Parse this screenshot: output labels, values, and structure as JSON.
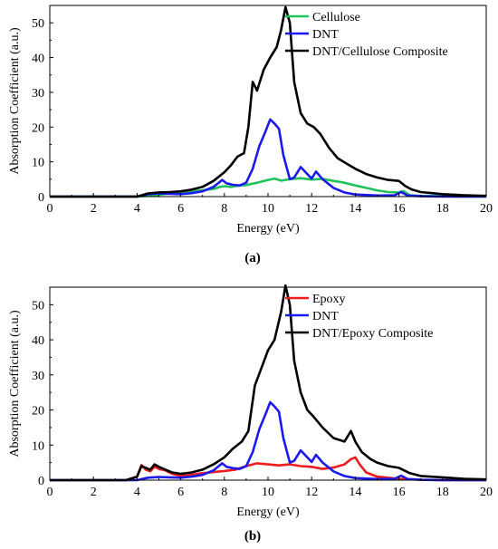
{
  "chart_data": [
    {
      "type": "line",
      "panel_label": "(a)",
      "xlabel": "Energy (eV)",
      "ylabel": "Absorption Coefficient (a.u.)",
      "xlim": [
        0,
        20
      ],
      "ylim": [
        0,
        55
      ],
      "xticks": [
        0,
        2,
        4,
        6,
        8,
        10,
        12,
        14,
        16,
        18,
        20
      ],
      "yticks": [
        0,
        10,
        20,
        30,
        40,
        50
      ],
      "legend_position": "top-right",
      "series": [
        {
          "name": "Cellulose",
          "color": "#1fc35a",
          "x": [
            0,
            4.0,
            4.5,
            5.0,
            5.5,
            6.0,
            6.5,
            7.0,
            7.5,
            7.8,
            8.0,
            8.3,
            8.6,
            9.0,
            9.5,
            10.0,
            10.3,
            10.6,
            11.0,
            11.5,
            12.0,
            12.5,
            13.0,
            13.5,
            14.0,
            14.5,
            15.0,
            15.5,
            16.0,
            16.2,
            16.5,
            17.0,
            18.0,
            19.0,
            20.0
          ],
          "y": [
            0,
            0,
            0.2,
            0.5,
            0.9,
            1.2,
            1.5,
            1.8,
            2.2,
            2.8,
            3.0,
            2.8,
            3.1,
            3.3,
            4.0,
            4.8,
            5.2,
            4.6,
            5.0,
            5.3,
            4.9,
            5.1,
            4.5,
            4.0,
            3.2,
            2.5,
            1.8,
            1.3,
            1.2,
            1.6,
            0.4,
            0.2,
            0.1,
            0,
            0
          ]
        },
        {
          "name": "DNT",
          "color": "#1a1aee",
          "x": [
            0,
            4.0,
            4.5,
            5.0,
            5.5,
            6.0,
            6.5,
            7.0,
            7.5,
            7.9,
            8.1,
            8.4,
            8.7,
            9.0,
            9.3,
            9.6,
            9.9,
            10.1,
            10.3,
            10.5,
            10.7,
            11.0,
            11.2,
            11.5,
            11.8,
            12.0,
            12.2,
            12.5,
            13.0,
            13.5,
            14.0,
            15.0,
            15.8,
            16.1,
            16.4,
            17.0,
            18.0,
            20.0
          ],
          "y": [
            0,
            0,
            0.7,
            0.9,
            0.8,
            0.7,
            1.0,
            1.5,
            2.8,
            4.8,
            3.8,
            3.4,
            3.2,
            4.0,
            8.0,
            14.5,
            19.0,
            22.2,
            21.0,
            19.5,
            12.0,
            5.0,
            5.5,
            8.5,
            6.5,
            5.2,
            7.2,
            5.0,
            2.5,
            1.2,
            0.6,
            0.3,
            0.4,
            1.3,
            0.3,
            0.1,
            0,
            0
          ]
        },
        {
          "name": "DNT/Cellulose Composite",
          "color": "#000000",
          "x": [
            0,
            4.0,
            4.5,
            5.0,
            5.5,
            6.0,
            6.5,
            7.0,
            7.5,
            8.0,
            8.3,
            8.6,
            8.9,
            9.1,
            9.3,
            9.5,
            9.8,
            10.1,
            10.4,
            10.6,
            10.8,
            11.0,
            11.2,
            11.5,
            11.8,
            12.1,
            12.4,
            12.8,
            13.2,
            13.6,
            14.0,
            14.5,
            15.0,
            15.5,
            16.0,
            16.3,
            16.6,
            17.0,
            17.5,
            18.0,
            19.0,
            20.0
          ],
          "y": [
            0,
            0,
            0.9,
            1.2,
            1.3,
            1.5,
            2.0,
            2.8,
            4.5,
            7.0,
            9.0,
            11.5,
            12.5,
            20.0,
            33.0,
            30.5,
            36.5,
            40.0,
            43.0,
            48.0,
            54.5,
            50.0,
            33.0,
            24.0,
            21.0,
            20.0,
            18.0,
            14.0,
            11.0,
            9.5,
            8.0,
            6.5,
            5.5,
            4.8,
            4.5,
            3.0,
            2.0,
            1.3,
            1.0,
            0.7,
            0.4,
            0.2
          ]
        }
      ]
    },
    {
      "type": "line",
      "panel_label": "(b)",
      "xlabel": "Energy (eV)",
      "ylabel": "Absorption Coefficient (a.u.)",
      "xlim": [
        0,
        20
      ],
      "ylim": [
        0,
        55
      ],
      "xticks": [
        0,
        2,
        4,
        6,
        8,
        10,
        12,
        14,
        16,
        18,
        20
      ],
      "yticks": [
        0,
        10,
        20,
        30,
        40,
        50
      ],
      "legend_position": "top-right",
      "series": [
        {
          "name": "Epoxy",
          "color": "#ee1c1c",
          "x": [
            0,
            3.5,
            4.0,
            4.2,
            4.4,
            4.6,
            4.8,
            5.0,
            5.3,
            5.6,
            6.0,
            6.5,
            7.0,
            7.5,
            8.0,
            8.5,
            9.0,
            9.5,
            10.0,
            10.5,
            11.0,
            11.5,
            12.0,
            12.5,
            13.0,
            13.5,
            13.8,
            14.0,
            14.2,
            14.5,
            15.0,
            16.0,
            17.0,
            18.0,
            20.0
          ],
          "y": [
            0,
            0,
            1.0,
            4.3,
            3.0,
            2.5,
            3.8,
            3.2,
            2.8,
            1.8,
            1.2,
            1.5,
            2.0,
            2.3,
            2.6,
            3.0,
            4.0,
            4.8,
            4.5,
            4.2,
            4.5,
            4.0,
            3.8,
            3.2,
            3.6,
            4.5,
            6.0,
            6.5,
            4.5,
            2.2,
            1.0,
            0.4,
            0.1,
            0,
            0
          ]
        },
        {
          "name": "DNT",
          "color": "#1a1aee",
          "x": [
            0,
            4.0,
            4.5,
            5.0,
            5.5,
            6.0,
            6.5,
            7.0,
            7.5,
            7.9,
            8.1,
            8.4,
            8.7,
            9.0,
            9.3,
            9.6,
            9.9,
            10.1,
            10.3,
            10.5,
            10.7,
            11.0,
            11.2,
            11.5,
            11.8,
            12.0,
            12.2,
            12.5,
            13.0,
            13.5,
            14.0,
            15.0,
            15.8,
            16.1,
            16.4,
            17.0,
            18.0,
            20.0
          ],
          "y": [
            0,
            0,
            0.7,
            0.9,
            0.8,
            0.7,
            1.0,
            1.5,
            2.8,
            4.8,
            3.8,
            3.4,
            3.2,
            4.0,
            8.0,
            14.5,
            19.0,
            22.2,
            21.0,
            19.5,
            12.0,
            5.0,
            5.5,
            8.5,
            6.5,
            5.2,
            7.2,
            5.0,
            2.5,
            1.2,
            0.6,
            0.3,
            0.4,
            1.3,
            0.3,
            0.1,
            0,
            0
          ]
        },
        {
          "name": "DNT/Epoxy Composite",
          "color": "#000000",
          "x": [
            0,
            3.5,
            4.0,
            4.2,
            4.4,
            4.6,
            4.8,
            5.0,
            5.3,
            5.6,
            6.0,
            6.5,
            7.0,
            7.5,
            8.0,
            8.4,
            8.8,
            9.1,
            9.4,
            9.7,
            10.0,
            10.3,
            10.6,
            10.8,
            11.0,
            11.2,
            11.5,
            11.8,
            12.1,
            12.5,
            13.0,
            13.5,
            13.8,
            14.0,
            14.3,
            14.7,
            15.0,
            15.5,
            16.0,
            16.5,
            17.0,
            18.0,
            19.0,
            20.0
          ],
          "y": [
            0,
            0,
            1.0,
            4.0,
            3.5,
            3.0,
            4.5,
            3.8,
            3.0,
            2.2,
            1.8,
            2.2,
            3.0,
            4.5,
            6.5,
            9.0,
            11.0,
            14.0,
            27.0,
            32.0,
            37.0,
            40.0,
            48.0,
            55.5,
            50.0,
            34.0,
            25.0,
            20.0,
            18.0,
            15.0,
            12.0,
            11.0,
            14.0,
            11.0,
            8.0,
            6.0,
            5.0,
            4.0,
            3.5,
            2.0,
            1.2,
            0.8,
            0.4,
            0.2
          ]
        }
      ]
    }
  ]
}
